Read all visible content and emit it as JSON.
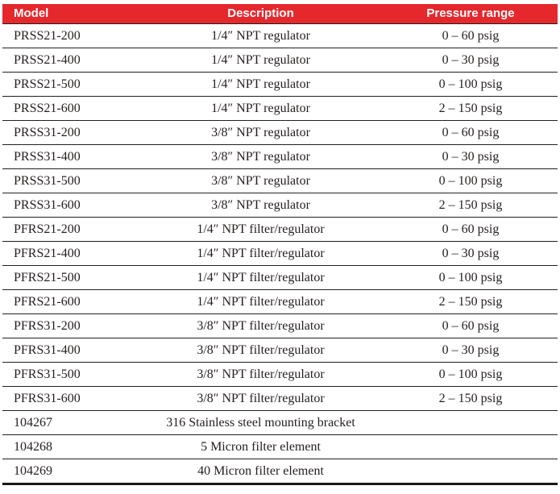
{
  "table": {
    "columns": [
      {
        "label": "Model"
      },
      {
        "label": "Description"
      },
      {
        "label": "Pressure range"
      }
    ],
    "rows": [
      {
        "model": "PRSS21-200",
        "description": "1/4″ NPT regulator",
        "pressure_range": "0 – 60 psig"
      },
      {
        "model": "PRSS21-400",
        "description": "1/4″ NPT regulator",
        "pressure_range": "0 – 30 psig"
      },
      {
        "model": "PRSS21-500",
        "description": "1/4″ NPT regulator",
        "pressure_range": "0 – 100 psig"
      },
      {
        "model": "PRSS21-600",
        "description": "1/4″ NPT regulator",
        "pressure_range": "2 – 150 psig"
      },
      {
        "model": "PRSS31-200",
        "description": "3/8″ NPT regulator",
        "pressure_range": "0 – 60 psig"
      },
      {
        "model": "PRSS31-400",
        "description": "3/8″ NPT regulator",
        "pressure_range": "0 – 30 psig"
      },
      {
        "model": "PRSS31-500",
        "description": "3/8″ NPT regulator",
        "pressure_range": "0 – 100 psig"
      },
      {
        "model": "PRSS31-600",
        "description": "3/8″ NPT regulator",
        "pressure_range": "2 – 150 psig"
      },
      {
        "model": "PFRS21-200",
        "description": "1/4″ NPT filter/regulator",
        "pressure_range": "0 – 60 psig"
      },
      {
        "model": "PFRS21-400",
        "description": "1/4″ NPT filter/regulator",
        "pressure_range": "0 – 30 psig"
      },
      {
        "model": "PFRS21-500",
        "description": "1/4″ NPT filter/regulator",
        "pressure_range": "0 – 100 psig"
      },
      {
        "model": "PFRS21-600",
        "description": "1/4″ NPT filter/regulator",
        "pressure_range": "2 – 150 psig"
      },
      {
        "model": "PFRS31-200",
        "description": "3/8″ NPT filter/regulator",
        "pressure_range": "0 – 60 psig"
      },
      {
        "model": "PFRS31-400",
        "description": "3/8″ NPT filter/regulator",
        "pressure_range": "0 – 30 psig"
      },
      {
        "model": "PFRS31-500",
        "description": "3/8″ NPT filter/regulator",
        "pressure_range": "0 – 100 psig"
      },
      {
        "model": "PFRS31-600",
        "description": "3/8″ NPT filter/regulator",
        "pressure_range": "2 – 150 psig"
      },
      {
        "model": "104267",
        "description": "316 Stainless steel mounting bracket",
        "pressure_range": ""
      },
      {
        "model": "104268",
        "description": "5 Micron filter element",
        "pressure_range": ""
      },
      {
        "model": "104269",
        "description": "40 Micron filter element",
        "pressure_range": ""
      }
    ],
    "colors": {
      "header_bg": "#e5282c",
      "header_text": "#ffffff",
      "row_line": "#231f20",
      "body_text": "#272120"
    }
  }
}
